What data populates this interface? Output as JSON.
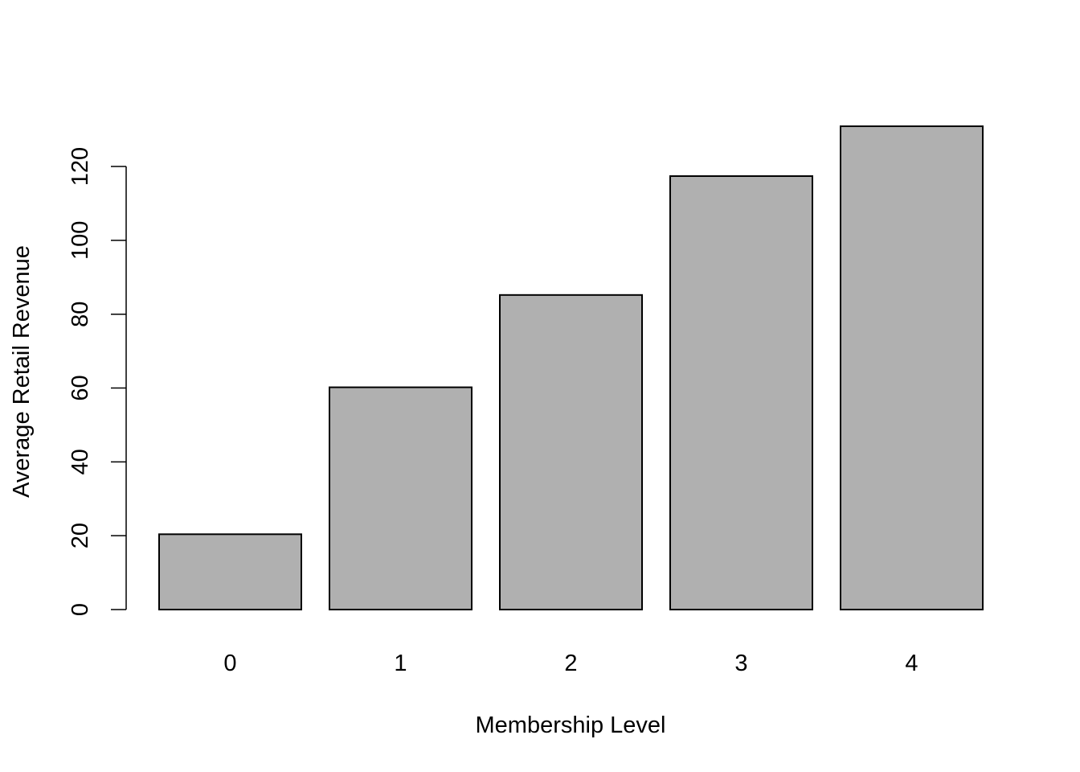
{
  "chart_data": {
    "type": "bar",
    "title": "",
    "xlabel": "Membership Level",
    "ylabel": "Average Retail Revenue",
    "categories": [
      "0",
      "1",
      "2",
      "3",
      "4"
    ],
    "values": [
      20.4,
      60.2,
      85.2,
      117.4,
      130.9
    ],
    "ylim": [
      0,
      130.9
    ],
    "yticks": [
      0,
      20,
      40,
      60,
      80,
      100,
      120
    ],
    "bar_color": "#b0b0b0",
    "border_color": "#000000",
    "grid": false,
    "legend": false
  }
}
